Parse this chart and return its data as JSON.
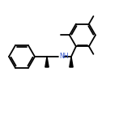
{
  "background_color": "#ffffff",
  "bond_color": "#000000",
  "nh_color": "#3355cc",
  "line_width": 1.3,
  "fig_size": [
    1.52,
    1.52
  ],
  "dpi": 100,
  "ring_r": 16,
  "mes_r": 16
}
